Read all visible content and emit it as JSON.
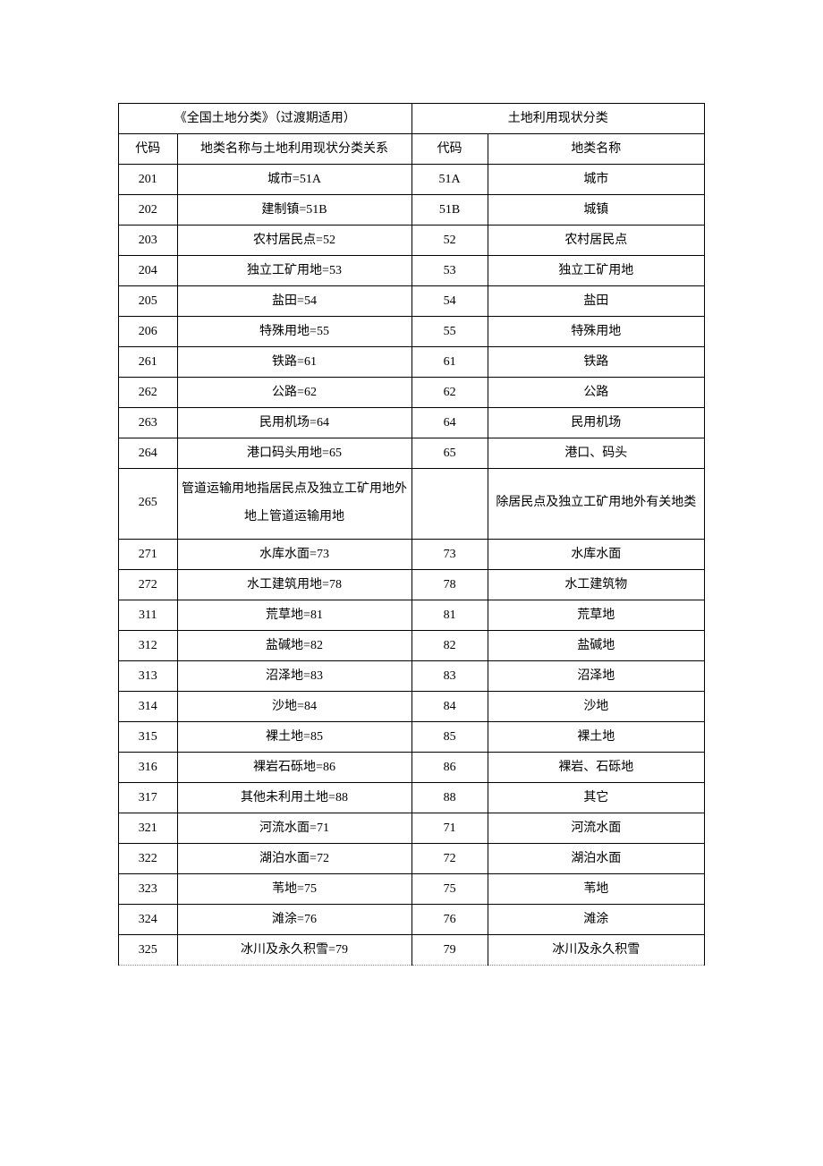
{
  "table": {
    "header_left": "《全国土地分类》（过渡期适用）",
    "header_right": "土地利用现状分类",
    "subheader": {
      "code_left": "代码",
      "name_left": "地类名称与土地利用现状分类关系",
      "code_right": "代码",
      "name_right": "地类名称"
    },
    "rows": [
      {
        "c1": "201",
        "c2": "城市=51A",
        "c3": "51A",
        "c4": "城市",
        "dotted": false
      },
      {
        "c1": "202",
        "c2": "建制镇=51B",
        "c3": "51B",
        "c4": "城镇",
        "dotted": false
      },
      {
        "c1": "203",
        "c2": "农村居民点=52",
        "c3": "52",
        "c4": "农村居民点",
        "dotted": false
      },
      {
        "c1": "204",
        "c2": "独立工矿用地=53",
        "c3": "53",
        "c4": "独立工矿用地",
        "dotted": false
      },
      {
        "c1": "205",
        "c2": "盐田=54",
        "c3": "54",
        "c4": "盐田",
        "dotted": false
      },
      {
        "c1": "206",
        "c2": "特殊用地=55",
        "c3": "55",
        "c4": "特殊用地",
        "dotted": false
      },
      {
        "c1": "261",
        "c2": "铁路=61",
        "c3": "61",
        "c4": "铁路",
        "dotted": true
      },
      {
        "c1": "262",
        "c2": "公路=62",
        "c3": "62",
        "c4": "公路",
        "dotted": true
      },
      {
        "c1": "263",
        "c2": "民用机场=64",
        "c3": "64",
        "c4": "民用机场",
        "dotted": false
      },
      {
        "c1": "264",
        "c2": "港口码头用地=65",
        "c3": "65",
        "c4": "港口、码头",
        "dotted": false
      },
      {
        "c1": "265",
        "c2": "管道运输用地指居民点及独立工矿用地外地上管道运输用地",
        "c3": "",
        "c4": "除居民点及独立工矿用地外有关地类",
        "dotted": false,
        "multi": true
      },
      {
        "c1": "271",
        "c2": "水库水面=73",
        "c3": "73",
        "c4": "水库水面",
        "dotted": false
      },
      {
        "c1": "272",
        "c2": "水工建筑用地=78",
        "c3": "78",
        "c4": "水工建筑物",
        "dotted": true
      },
      {
        "c1": "311",
        "c2": "荒草地=81",
        "c3": "81",
        "c4": "荒草地",
        "dotted": false
      },
      {
        "c1": "312",
        "c2": "盐碱地=82",
        "c3": "82",
        "c4": "盐碱地",
        "dotted": false
      },
      {
        "c1": "313",
        "c2": "沼泽地=83",
        "c3": "83",
        "c4": "沼泽地",
        "dotted": true
      },
      {
        "c1": "314",
        "c2": "沙地=84",
        "c3": "84",
        "c4": "沙地",
        "dotted": true
      },
      {
        "c1": "315",
        "c2": "裸土地=85",
        "c3": "85",
        "c4": "裸土地",
        "dotted": true
      },
      {
        "c1": "316",
        "c2": "裸岩石砾地=86",
        "c3": "86",
        "c4": "裸岩、石砾地",
        "dotted": false
      },
      {
        "c1": "317",
        "c2": "其他未利用土地=88",
        "c3": "88",
        "c4": "其它",
        "dotted": false
      },
      {
        "c1": "321",
        "c2": "河流水面=71",
        "c3": "71",
        "c4": "河流水面",
        "dotted": true
      },
      {
        "c1": "322",
        "c2": "湖泊水面=72",
        "c3": "72",
        "c4": "湖泊水面",
        "dotted": true
      },
      {
        "c1": "323",
        "c2": "苇地=75",
        "c3": "75",
        "c4": "苇地",
        "dotted": true
      },
      {
        "c1": "324",
        "c2": "滩涂=76",
        "c3": "76",
        "c4": "滩涂",
        "dotted": true
      },
      {
        "c1": "325",
        "c2": "冰川及永久积雪=79",
        "c3": "79",
        "c4": "冰川及永久积雪",
        "dotted": true
      }
    ],
    "styling": {
      "font_family": "SimSun",
      "font_size_pt": 10.5,
      "text_color": "#000000",
      "border_color": "#000000",
      "dotted_color": "#888888",
      "background_color": "#ffffff",
      "col_widths_pct": [
        10,
        40,
        13,
        37
      ]
    }
  }
}
